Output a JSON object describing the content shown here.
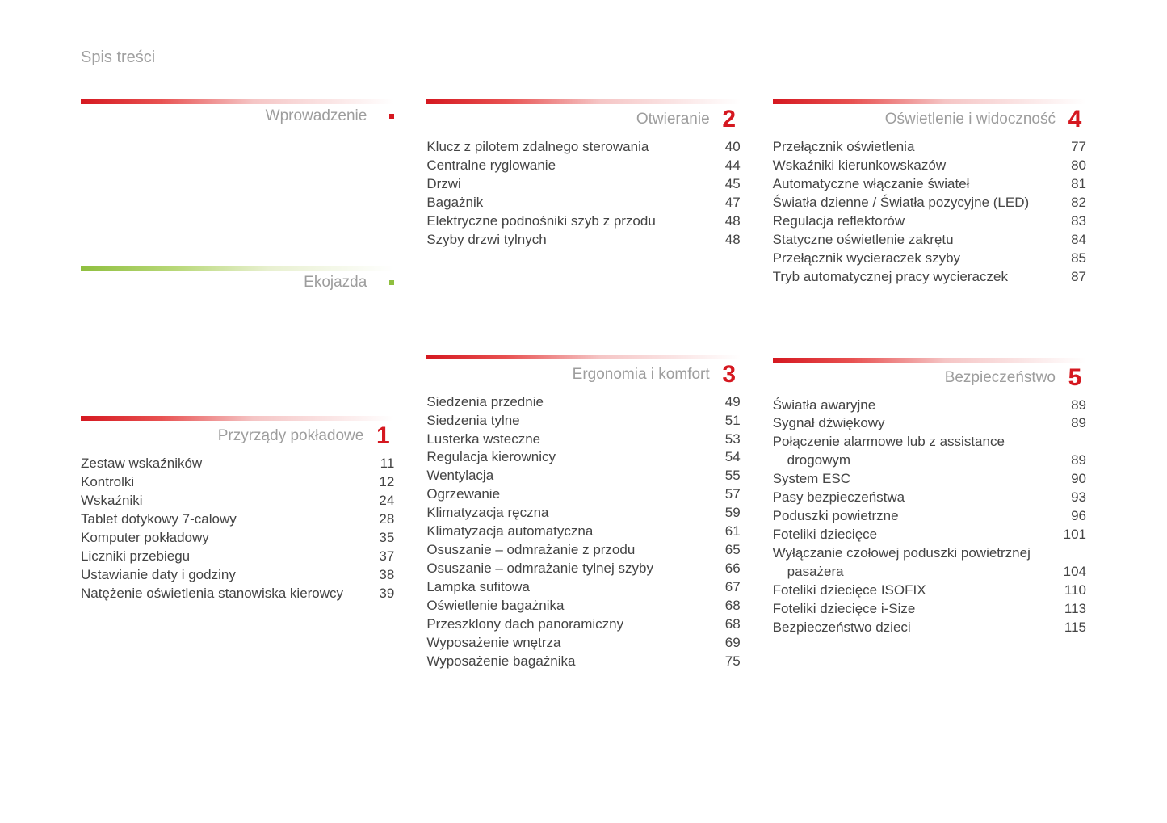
{
  "page_title": "Spis treści",
  "colors": {
    "red": "#d51820",
    "green": "#8fbf3f",
    "title_gray": "#a0a0a0",
    "section_title_gray": "#9d9d9d",
    "text": "#444444"
  },
  "columns": [
    {
      "sections": [
        {
          "title": "Wprowadzenie",
          "num": null,
          "marker": "dot-red",
          "bar": "grad-red",
          "items": []
        },
        {
          "title": "Ekojazda",
          "num": null,
          "marker": "dot-green",
          "bar": "grad-green",
          "items": []
        },
        {
          "title": "Przyrządy pokładowe",
          "num": "1",
          "marker": null,
          "bar": "grad-red",
          "items": [
            {
              "label": "Zestaw wskaźników",
              "page": "11"
            },
            {
              "label": "Kontrolki",
              "page": "12"
            },
            {
              "label": "Wskaźniki",
              "page": "24"
            },
            {
              "label": "Tablet dotykowy 7-calowy",
              "page": "28"
            },
            {
              "label": "Komputer pokładowy",
              "page": "35"
            },
            {
              "label": "Liczniki przebiegu",
              "page": "37"
            },
            {
              "label": "Ustawianie daty i godziny",
              "page": "38"
            },
            {
              "label": "Natężenie oświetlenia stanowiska kierowcy",
              "page": "39"
            }
          ]
        }
      ]
    },
    {
      "sections": [
        {
          "title": "Otwieranie",
          "num": "2",
          "marker": null,
          "bar": "grad-red",
          "items": [
            {
              "label": "Klucz z pilotem zdalnego sterowania",
              "page": "40"
            },
            {
              "label": "Centralne ryglowanie",
              "page": "44"
            },
            {
              "label": "Drzwi",
              "page": "45"
            },
            {
              "label": "Bagażnik",
              "page": "47"
            },
            {
              "label": "Elektryczne podnośniki szyb z przodu",
              "page": "48"
            },
            {
              "label": "Szyby drzwi tylnych",
              "page": "48"
            }
          ]
        },
        {
          "title": "Ergonomia i komfort",
          "num": "3",
          "marker": null,
          "bar": "grad-red",
          "items": [
            {
              "label": "Siedzenia przednie",
              "page": "49"
            },
            {
              "label": "Siedzenia tylne",
              "page": "51"
            },
            {
              "label": "Lusterka wsteczne",
              "page": "53"
            },
            {
              "label": "Regulacja kierownicy",
              "page": "54"
            },
            {
              "label": "Wentylacja",
              "page": "55"
            },
            {
              "label": "Ogrzewanie",
              "page": "57"
            },
            {
              "label": "Klimatyzacja ręczna",
              "page": "59"
            },
            {
              "label": "Klimatyzacja automatyczna",
              "page": "61"
            },
            {
              "label": "Osuszanie – odmrażanie z przodu",
              "page": "65"
            },
            {
              "label": "Osuszanie – odmrażanie tylnej szyby",
              "page": "66"
            },
            {
              "label": "Lampka sufitowa",
              "page": "67"
            },
            {
              "label": "Oświetlenie bagażnika",
              "page": "68"
            },
            {
              "label": "Przeszklony dach panoramiczny",
              "page": "68"
            },
            {
              "label": "Wyposażenie wnętrza",
              "page": "69"
            },
            {
              "label": "Wyposażenie bagażnika",
              "page": "75"
            }
          ]
        }
      ]
    },
    {
      "sections": [
        {
          "title": "Oświetlenie i widoczność",
          "num": "4",
          "marker": null,
          "bar": "grad-red",
          "items": [
            {
              "label": "Przełącznik oświetlenia",
              "page": "77"
            },
            {
              "label": "Wskaźniki kierunkowskazów",
              "page": "80"
            },
            {
              "label": "Automatyczne włączanie świateł",
              "page": "81"
            },
            {
              "label": "Światła dzienne / Światła pozycyjne (LED)",
              "page": "82"
            },
            {
              "label": "Regulacja reflektorów",
              "page": "83"
            },
            {
              "label": "Statyczne oświetlenie zakrętu",
              "page": "84"
            },
            {
              "label": "Przełącznik wycieraczek szyby",
              "page": "85"
            },
            {
              "label": "Tryb automatycznej pracy wycieraczek",
              "page": "87"
            }
          ]
        },
        {
          "title": "Bezpieczeństwo",
          "num": "5",
          "marker": null,
          "bar": "grad-red",
          "items": [
            {
              "label": "Światła awaryjne",
              "page": "89"
            },
            {
              "label": "Sygnał dźwiękowy",
              "page": "89"
            },
            {
              "label": "Połączenie alarmowe lub z assistance",
              "page": "",
              "nopage": true
            },
            {
              "label": "drogowym",
              "page": "89",
              "indent": true
            },
            {
              "label": "System ESC",
              "page": "90"
            },
            {
              "label": "Pasy bezpieczeństwa",
              "page": "93"
            },
            {
              "label": "Poduszki powietrzne",
              "page": "96"
            },
            {
              "label": "Foteliki dziecięce",
              "page": "101"
            },
            {
              "label": "Wyłączanie czołowej poduszki powietrznej",
              "page": "",
              "nopage": true
            },
            {
              "label": "pasażera",
              "page": "104",
              "indent": true
            },
            {
              "label": "Foteliki dziecięce ISOFIX",
              "page": "110"
            },
            {
              "label": "Foteliki dziecięce i-Size",
              "page": "113"
            },
            {
              "label": "Bezpieczeństwo dzieci",
              "page": "115"
            }
          ]
        }
      ]
    }
  ]
}
